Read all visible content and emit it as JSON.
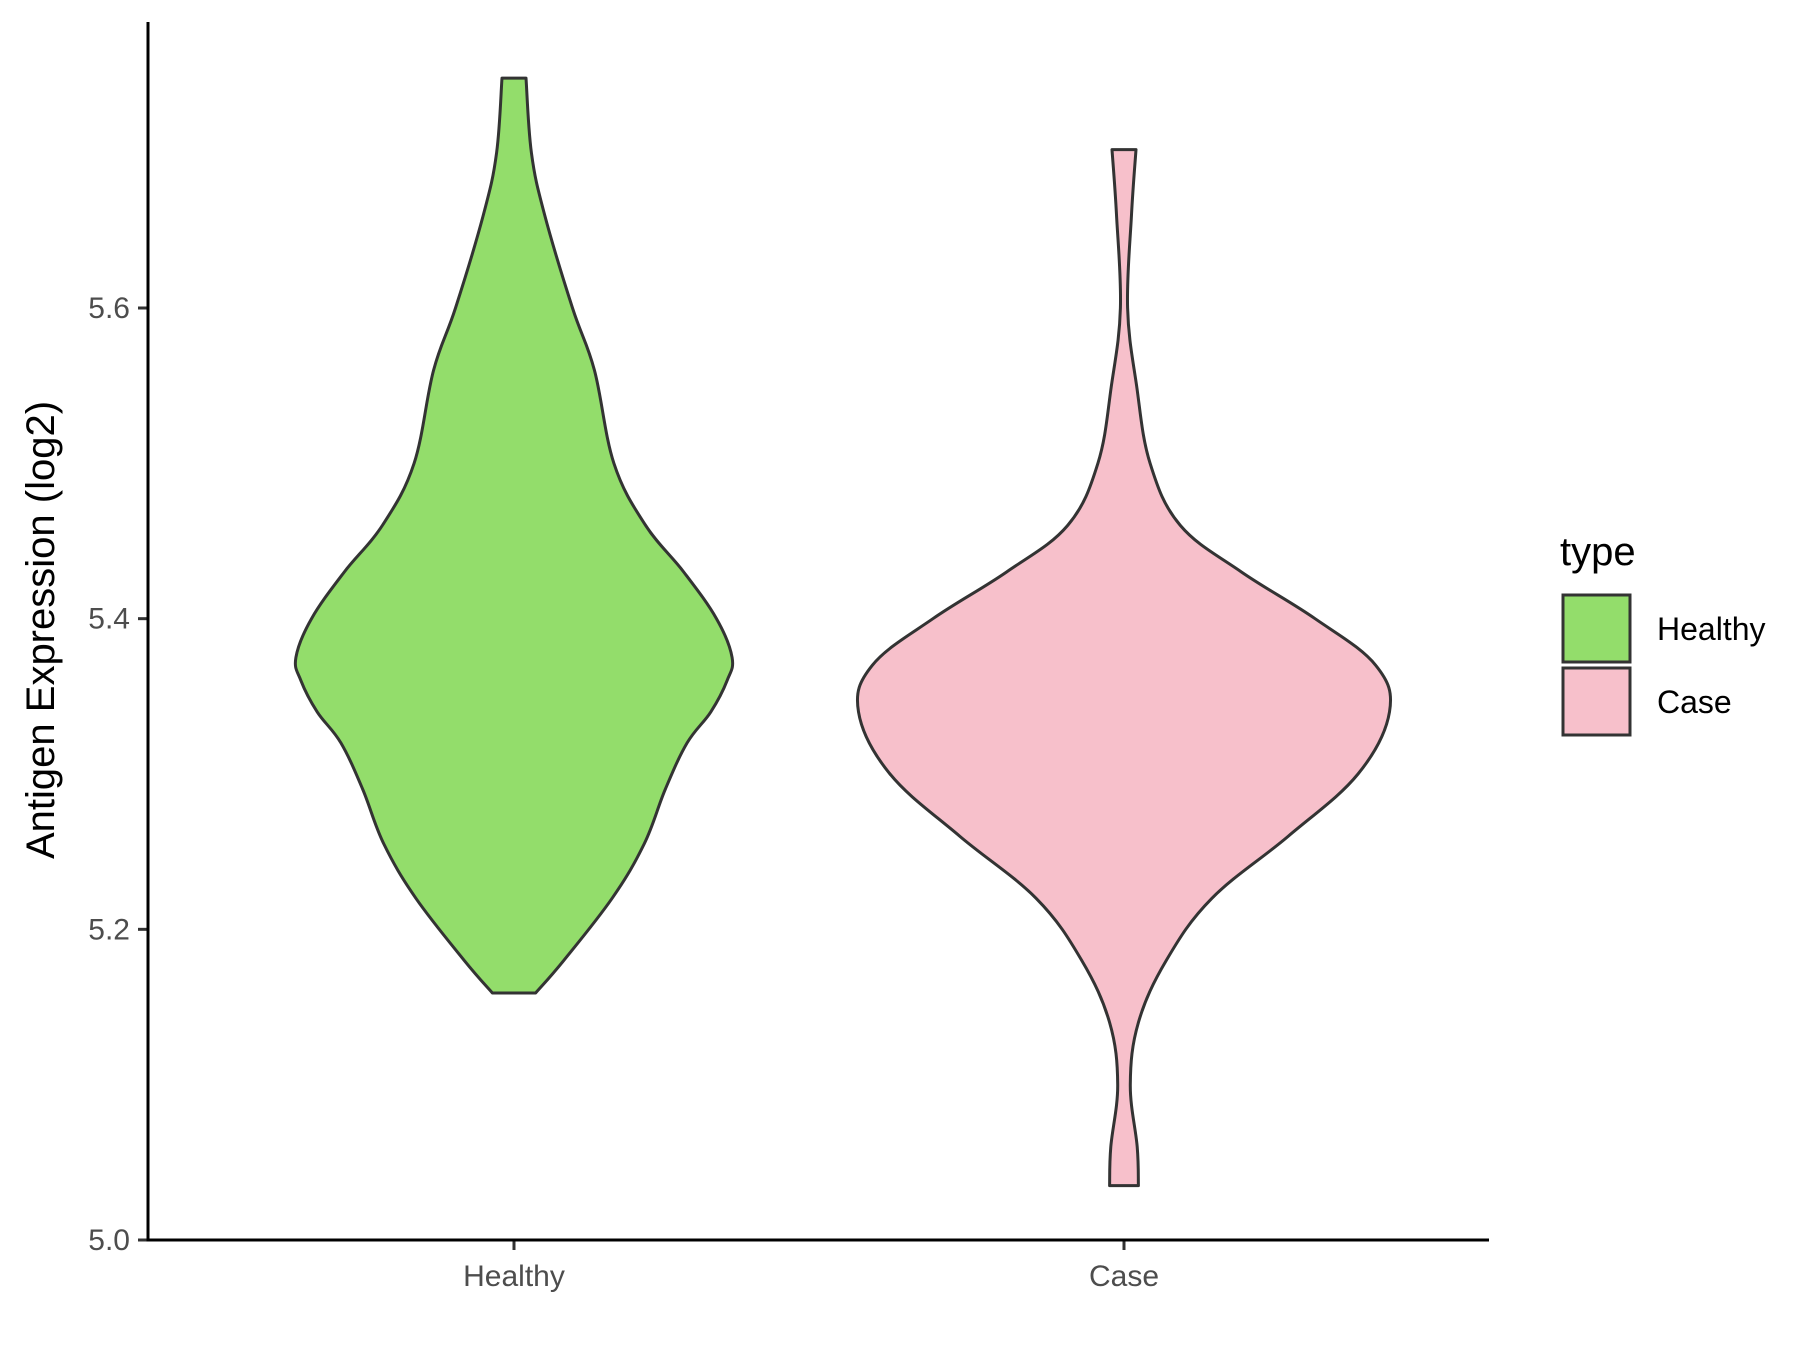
{
  "chart_data": {
    "type": "violin",
    "ylabel": "Antigen Expression (log2)",
    "xlabel": "",
    "categories": [
      "Healthy",
      "Case"
    ],
    "ylim": [
      5.0,
      5.78
    ],
    "y_ticks": [
      "5.0",
      "5.2",
      "5.4",
      "5.6"
    ],
    "grid": false,
    "legend": {
      "title": "type",
      "position": "right",
      "entries": [
        "Healthy",
        "Case"
      ]
    },
    "series": [
      {
        "category": "Healthy",
        "color": "#93DD6B",
        "y_min": 5.159,
        "y_max": 5.748,
        "density_profile": [
          [
            5.159,
            0.072
          ],
          [
            5.18,
            0.166
          ],
          [
            5.22,
            0.327
          ],
          [
            5.255,
            0.434
          ],
          [
            5.29,
            0.504
          ],
          [
            5.32,
            0.577
          ],
          [
            5.34,
            0.656
          ],
          [
            5.36,
            0.71
          ],
          [
            5.375,
            0.727
          ],
          [
            5.4,
            0.675
          ],
          [
            5.43,
            0.566
          ],
          [
            5.46,
            0.439
          ],
          [
            5.5,
            0.333
          ],
          [
            5.56,
            0.268
          ],
          [
            5.6,
            0.195
          ],
          [
            5.66,
            0.102
          ],
          [
            5.7,
            0.058
          ],
          [
            5.748,
            0.04
          ]
        ]
      },
      {
        "category": "Case",
        "color": "#F7C0CB",
        "y_min": 5.035,
        "y_max": 5.702,
        "density_profile": [
          [
            5.035,
            0.048
          ],
          [
            5.06,
            0.044
          ],
          [
            5.1,
            0.021
          ],
          [
            5.14,
            0.048
          ],
          [
            5.18,
            0.141
          ],
          [
            5.22,
            0.293
          ],
          [
            5.26,
            0.548
          ],
          [
            5.3,
            0.78
          ],
          [
            5.34,
            0.885
          ],
          [
            5.37,
            0.839
          ],
          [
            5.4,
            0.637
          ],
          [
            5.43,
            0.392
          ],
          [
            5.46,
            0.188
          ],
          [
            5.5,
            0.087
          ],
          [
            5.55,
            0.042
          ],
          [
            5.6,
            0.012
          ],
          [
            5.66,
            0.025
          ],
          [
            5.702,
            0.04
          ]
        ]
      }
    ]
  }
}
